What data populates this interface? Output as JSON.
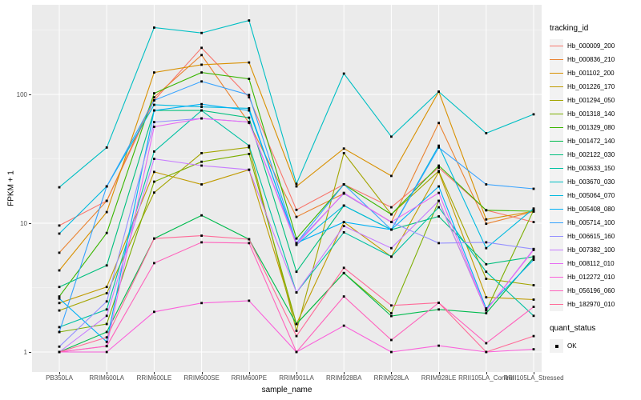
{
  "figure": {
    "y_axis": {
      "title": "FPKM + 1"
    },
    "x_axis": {
      "title": "sample_name"
    },
    "legend": {
      "tracking_title": "tracking_id",
      "quant_title": "quant_status",
      "quant_items": [
        {
          "label": "OK",
          "shape": "black-square"
        }
      ]
    },
    "colors": {
      "panel_bg": "#EBEBEB",
      "grid_major": "#FFFFFF",
      "grid_minor": "#F5F5F5",
      "tick_text": "#4D4D4D",
      "marker": "#000000",
      "legend_key_bg": "#F2F2F2"
    }
  },
  "chart_data": {
    "type": "line",
    "title": "",
    "xlabel": "sample_name",
    "ylabel": "FPKM + 1",
    "y_scale": "log10",
    "ylim": [
      0.7,
      500
    ],
    "y_major_ticks": [
      1,
      10,
      100
    ],
    "y_minor_gridlines": [
      3.162,
      31.62,
      316.2
    ],
    "grid": true,
    "legend_position": "right",
    "markers": {
      "shape": "square",
      "color": "#000000",
      "legend_label": "OK"
    },
    "x_categories": [
      "PB350LA",
      "RRIM600LA",
      "RRIM600LE",
      "RRIM600SE",
      "RRIM600PE",
      "RRIM901LA",
      "RRIM928BA",
      "RRIM928LA",
      "RRIM928LE",
      "RRII105LA_Control",
      "RRII105LA_Stressed"
    ],
    "series": [
      {
        "name": "Hb_000009_200",
        "color": "#F8766D",
        "values": [
          9.6,
          14.9,
          90,
          230,
          95,
          12.7,
          20,
          13.3,
          27,
          12.6,
          10.2
        ]
      },
      {
        "name": "Hb_000836_210",
        "color": "#EA8331",
        "values": [
          5.9,
          14.9,
          95,
          202,
          60,
          11.2,
          17,
          10.2,
          60,
          9.9,
          12.3
        ]
      },
      {
        "name": "Hb_001102_200",
        "color": "#D89000",
        "values": [
          4.3,
          12.2,
          148,
          170,
          177,
          19.3,
          38,
          23.3,
          105,
          10.7,
          12.4
        ]
      },
      {
        "name": "Hb_001226_170",
        "color": "#C09B00",
        "values": [
          2.4,
          3.2,
          25,
          20,
          26,
          1.65,
          10.2,
          5.5,
          25,
          2.66,
          2.55
        ]
      },
      {
        "name": "Hb_001294_050",
        "color": "#A3A500",
        "values": [
          2.1,
          2.86,
          17.3,
          35,
          38.8,
          1.46,
          35,
          11.7,
          25.4,
          3.7,
          3.3
        ]
      },
      {
        "name": "Hb_001318_140",
        "color": "#7CAE00",
        "values": [
          1.43,
          1.65,
          21,
          30,
          34.5,
          1.65,
          4.1,
          2.0,
          14.9,
          2.1,
          12.6
        ]
      },
      {
        "name": "Hb_001329_080",
        "color": "#39B600",
        "values": [
          2.7,
          8.4,
          102,
          148,
          132,
          7.6,
          20,
          11.7,
          28,
          12.6,
          12.4
        ]
      },
      {
        "name": "Hb_001472_140",
        "color": "#00BB4E",
        "values": [
          1.0,
          1.43,
          7.6,
          11.5,
          7.5,
          1.65,
          4.1,
          1.9,
          2.14,
          2.0,
          5.4
        ]
      },
      {
        "name": "Hb_002122_030",
        "color": "#00BF7D",
        "values": [
          3.2,
          4.7,
          75,
          75,
          66,
          4.2,
          13.7,
          8.9,
          11.3,
          4.8,
          5.5
        ]
      },
      {
        "name": "Hb_003633_150",
        "color": "#00C1A3",
        "values": [
          1.56,
          2.14,
          36,
          75,
          40,
          2.9,
          8.5,
          5.5,
          13.3,
          4.2,
          1.91
        ]
      },
      {
        "name": "Hb_003670_030",
        "color": "#00BFC4",
        "values": [
          19,
          38.7,
          330,
          300,
          375,
          20.2,
          145,
          47,
          105,
          50,
          70
        ]
      },
      {
        "name": "Hb_005064_070",
        "color": "#00BAE0",
        "values": [
          8.3,
          19.3,
          83,
          80,
          78,
          6.8,
          13.7,
          8.9,
          40,
          6.4,
          13
        ]
      },
      {
        "name": "Hb_005408_080",
        "color": "#00B0F6",
        "values": [
          2.6,
          1.2,
          75,
          84,
          75,
          7.0,
          10.2,
          8.9,
          19.3,
          2.18,
          5.2
        ]
      },
      {
        "name": "Hb_005714_100",
        "color": "#35A2FF",
        "values": [
          1.43,
          19.3,
          90,
          126,
          99,
          7.0,
          20,
          8.9,
          38.7,
          20,
          18.5
        ]
      },
      {
        "name": "Hb_006615_160",
        "color": "#9590FF",
        "values": [
          1.1,
          2.47,
          61,
          65,
          61,
          7.0,
          17,
          10.2,
          7.0,
          7.1,
          6.3
        ]
      },
      {
        "name": "Hb_007382_100",
        "color": "#C77CFF",
        "values": [
          1.0,
          1.91,
          31.6,
          28,
          26,
          2.9,
          9.5,
          6.4,
          14.9,
          2.1,
          6.3
        ]
      },
      {
        "name": "Hb_008112_010",
        "color": "#E76BF3",
        "values": [
          1.0,
          1.11,
          56,
          65,
          61,
          6.8,
          17.2,
          10.2,
          17.2,
          2.1,
          6.2
        ]
      },
      {
        "name": "Hb_012272_010",
        "color": "#FA62DB",
        "values": [
          1.0,
          1.0,
          2.05,
          2.4,
          2.5,
          1.0,
          1.6,
          1.0,
          1.12,
          1.0,
          1.05
        ]
      },
      {
        "name": "Hb_056196_060",
        "color": "#FF62BC",
        "values": [
          1.0,
          1.11,
          4.9,
          7.1,
          7.0,
          1.0,
          2.7,
          1.24,
          2.41,
          1.17,
          2.24
        ]
      },
      {
        "name": "Hb_182970_010",
        "color": "#FF6A98",
        "values": [
          1.0,
          1.3,
          7.6,
          8.0,
          7.5,
          1.33,
          4.5,
          2.3,
          2.41,
          1.0,
          1.33
        ]
      }
    ]
  }
}
